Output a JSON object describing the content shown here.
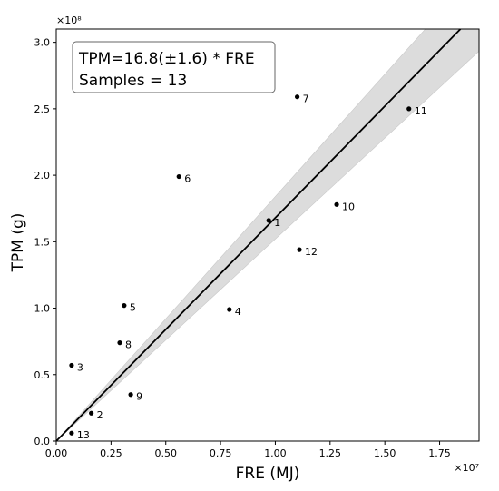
{
  "chart_data": {
    "type": "scatter",
    "title": "",
    "xlabel": "FRE (MJ)",
    "ylabel": "TPM (g)",
    "x_exponent_label": "×10⁷",
    "y_exponent_label": "×10⁸",
    "x_scale": 10000000,
    "y_scale": 100000000,
    "xlim": [
      0,
      1.93
    ],
    "ylim": [
      0,
      3.1
    ],
    "xticks": [
      0.0,
      0.25,
      0.5,
      0.75,
      1.0,
      1.25,
      1.5,
      1.75
    ],
    "xtick_labels": [
      "0.00",
      "0.25",
      "0.50",
      "0.75",
      "1.00",
      "1.25",
      "1.50",
      "1.75"
    ],
    "yticks": [
      0.0,
      0.5,
      1.0,
      1.5,
      2.0,
      2.5,
      3.0
    ],
    "ytick_labels": [
      "0.0",
      "0.5",
      "1.0",
      "1.5",
      "2.0",
      "2.5",
      "3.0"
    ],
    "grid": false,
    "points": [
      {
        "label": "1",
        "x": 0.97,
        "y": 1.66
      },
      {
        "label": "2",
        "x": 0.16,
        "y": 0.21
      },
      {
        "label": "3",
        "x": 0.07,
        "y": 0.57
      },
      {
        "label": "4",
        "x": 0.79,
        "y": 0.99
      },
      {
        "label": "5",
        "x": 0.31,
        "y": 1.02
      },
      {
        "label": "6",
        "x": 0.56,
        "y": 1.99
      },
      {
        "label": "7",
        "x": 1.1,
        "y": 2.59
      },
      {
        "label": "8",
        "x": 0.29,
        "y": 0.74
      },
      {
        "label": "9",
        "x": 0.34,
        "y": 0.35
      },
      {
        "label": "10",
        "x": 1.28,
        "y": 1.78
      },
      {
        "label": "11",
        "x": 1.61,
        "y": 2.5
      },
      {
        "label": "12",
        "x": 1.11,
        "y": 1.44
      },
      {
        "label": "13",
        "x": 0.07,
        "y": 0.06
      }
    ],
    "fit": {
      "slope": 16.8,
      "slope_err": 1.6
    },
    "annotation": {
      "line1": "TPM=16.8(±1.6) * FRE",
      "line2": "Samples = 13",
      "placement": "top-left"
    },
    "colors": {
      "points": "#000000",
      "fit_line": "#000000",
      "band": "#dcdcdc",
      "band_edge": "#c8c8c8"
    }
  }
}
